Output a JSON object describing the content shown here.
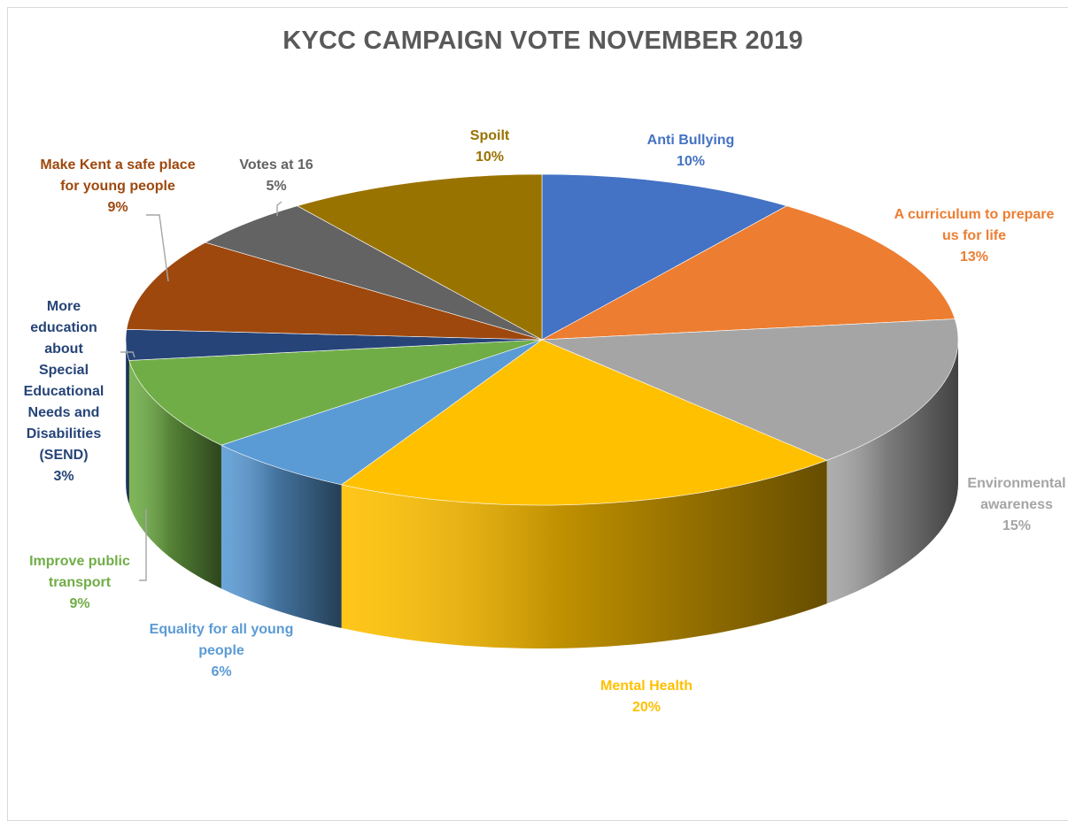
{
  "chart_data": {
    "type": "pie",
    "title": "KYCC CAMPAIGN VOTE NOVEMBER 2019",
    "slices": [
      {
        "label": "Anti Bullying",
        "value": 10,
        "value_label": "10%",
        "color": "#4472C4"
      },
      {
        "label": "A curriculum  to prepare us for life",
        "value": 13,
        "value_label": "13%",
        "color": "#ED7D31"
      },
      {
        "label": "Environmental awareness",
        "value": 15,
        "value_label": "15%",
        "color": "#A5A5A5"
      },
      {
        "label": "Mental Health",
        "value": 20,
        "value_label": "20%",
        "color": "#FFC000"
      },
      {
        "label": "Equality for all young people",
        "value": 6,
        "value_label": "6%",
        "color": "#5B9BD5"
      },
      {
        "label": "Improve public transport",
        "value": 9,
        "value_label": "9%",
        "color": "#70AD47"
      },
      {
        "label": "More education about Special Educational Needs and Disabilities (SEND)",
        "value": 3,
        "value_label": "3%",
        "color": "#264478"
      },
      {
        "label": "Make Kent a safe place for young people",
        "value": 9,
        "value_label": "9%",
        "color": "#9E480E"
      },
      {
        "label": "Votes at 16",
        "value": 5,
        "value_label": "5%",
        "color": "#636363"
      },
      {
        "label": "Spoilt",
        "value": 10,
        "value_label": "10%",
        "color": "#997300"
      }
    ],
    "legend": "none",
    "style": "3d-pie"
  }
}
